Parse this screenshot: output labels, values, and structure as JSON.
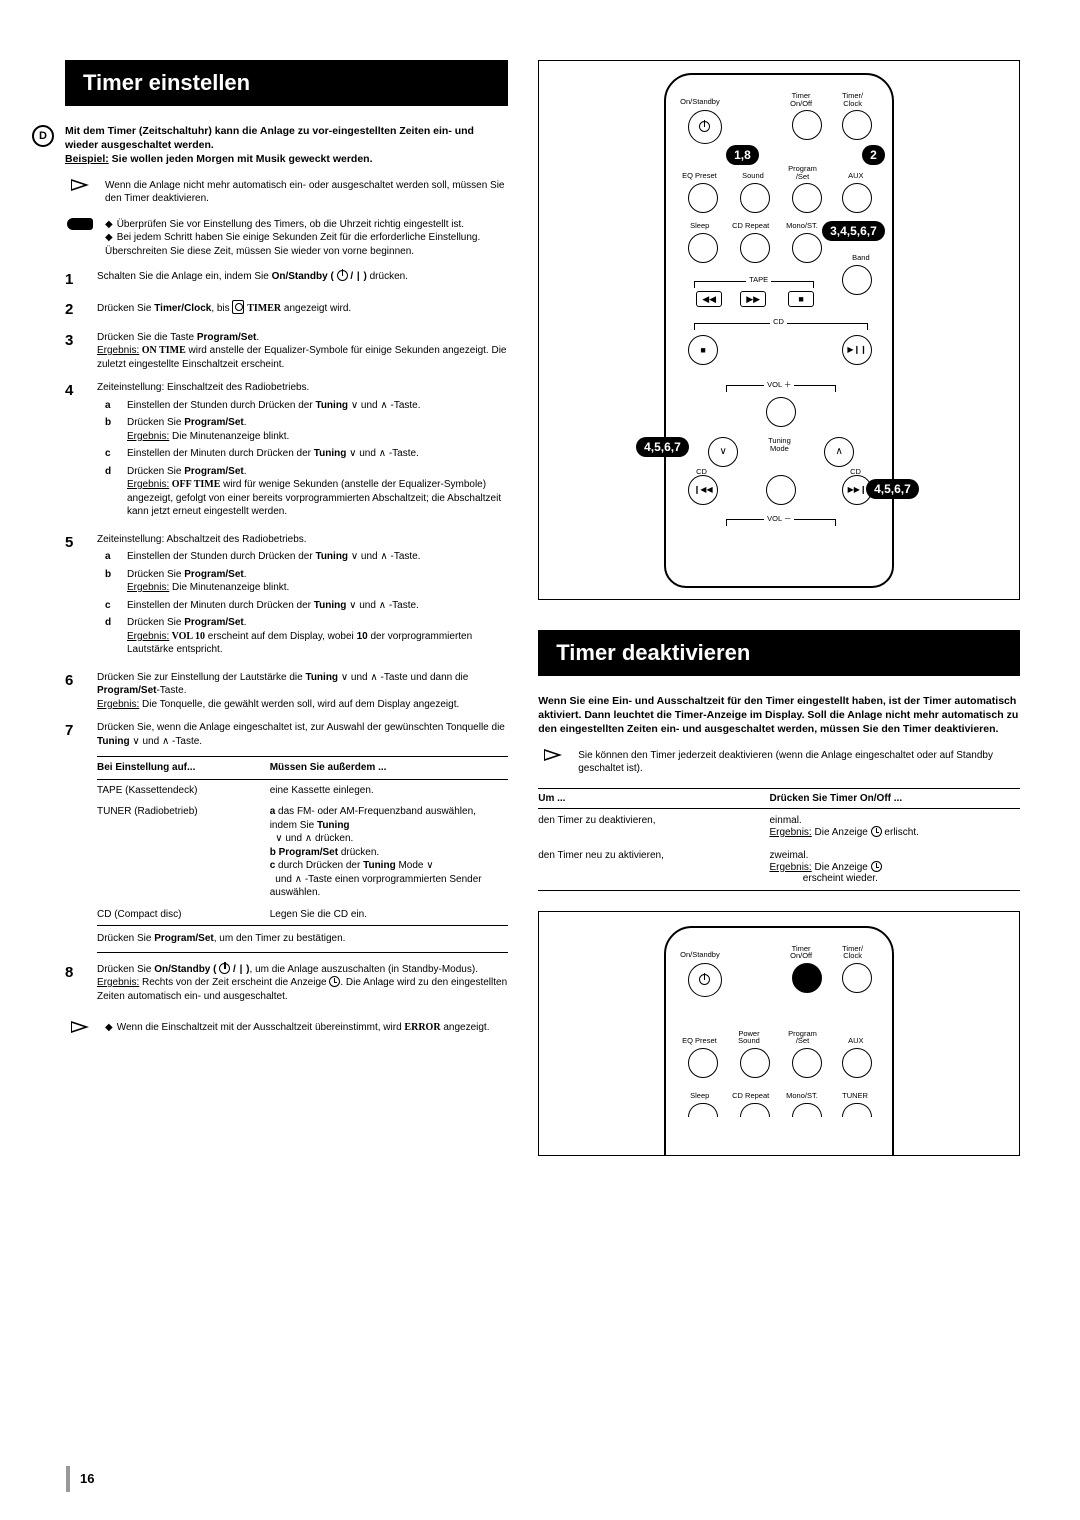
{
  "page": {
    "lang_badge": "D",
    "number": "16"
  },
  "title1": "Timer einstellen",
  "title2": "Timer deaktivieren",
  "intro": {
    "p1": "Mit dem Timer (Zeitschaltuhr) kann die Anlage zu vor-eingestellten Zeiten ein- und wieder ausgeschaltet werden.",
    "ex_label": "Beispiel:",
    "ex_text": " Sie wollen jeden Morgen mit Musik geweckt werden."
  },
  "note_arrow": "Wenn die Anlage nicht mehr automatisch ein- oder ausgeschaltet werden soll, müssen Sie den Timer deaktivieren.",
  "note_hand_1": "Überprüfen Sie vor Einstellung des Timers, ob die Uhrzeit richtig eingestellt ist.",
  "note_hand_2": "Bei jedem Schritt haben Sie einige Sekunden Zeit für die erforderliche Einstellung. Überschreiten Sie diese Zeit, müssen Sie wieder von vorne beginnen.",
  "steps": {
    "s1_a": "Schalten Sie die Anlage ein, indem Sie ",
    "s1_b": "On/Standby ( ",
    "s1_c": " ) ",
    "s1_d": "drücken.",
    "s2_a": "Drücken Sie ",
    "s2_b": "Timer/Clock",
    "s2_c": ", bis ",
    "s2_d": "TIMER",
    "s2_e": " angezeigt wird.",
    "s3_a": "Drücken Sie die Taste ",
    "s3_b": "Program/Set",
    "s3_c": ".",
    "s3_res_lbl": "Ergebnis:",
    "s3_res_a": " ON TIME",
    "s3_res_b": " wird anstelle der Equalizer-Symbole für einige Sekunden angezeigt. Die zuletzt eingestellte Einschaltzeit erscheint.",
    "s4": "Zeiteinstellung: Einschaltzeit des Radiobetriebs.",
    "s4a_a": "Einstellen der Stunden durch Drücken der ",
    "s4a_b": "Tuning",
    "s4a_c": " und ",
    "s4a_d": "-Taste.",
    "s4b_a": "Drücken Sie ",
    "s4b_b": "Program/Set",
    "s4b_c": ".",
    "s4b_res_lbl": "Ergebnis:",
    "s4b_res": " Die Minutenanzeige blinkt.",
    "s4c_a": "Einstellen der Minuten durch Drücken der ",
    "s4c_b": "Tuning",
    "s4c_c": " und ",
    "s4c_d": "-Taste.",
    "s4d_a": "Drücken Sie ",
    "s4d_b": "Program/Set",
    "s4d_c": ".",
    "s4d_res_lbl": "Ergebnis:",
    "s4d_res_a": " OFF TIME",
    "s4d_res_b": " wird für wenige Sekunden (anstelle der Equalizer-Symbole) angezeigt, gefolgt von einer bereits vorprogrammierten Abschaltzeit; die Abschaltzeit kann jetzt erneut eingestellt werden.",
    "s5": "Zeiteinstellung: Abschaltzeit des Radiobetriebs.",
    "s5a_a": "Einstellen der Stunden durch Drücken der ",
    "s5a_b": "Tuning",
    "s5a_c": " und ",
    "s5a_d": "-Taste.",
    "s5b_a": "Drücken Sie ",
    "s5b_b": "Program/Set",
    "s5b_c": ".",
    "s5b_res_lbl": "Ergebnis:",
    "s5b_res": " Die Minutenanzeige blinkt.",
    "s5c_a": "Einstellen der Minuten durch Drücken der ",
    "s5c_b": "Tuning",
    "s5c_c": " und ",
    "s5c_d": "-Taste.",
    "s5d_a": "Drücken Sie ",
    "s5d_b": "Program/Set",
    "s5d_c": ".",
    "s5d_res_lbl": "Ergebnis:",
    "s5d_res_a": " VOL 10",
    "s5d_res_b": " erscheint auf dem Display, wobei ",
    "s5d_res_c": "10",
    "s5d_res_d": " der vorprogrammierten Lautstärke entspricht.",
    "s6_a": "Drücken Sie zur Einstellung der Lautstärke die ",
    "s6_b": "Tuning",
    "s6_c": " und ",
    "s6_d": "-Taste und dann die ",
    "s6_e": "Program/Set",
    "s6_f": "-Taste.",
    "s6_res_lbl": "Ergebnis:",
    "s6_res": " Die Tonquelle, die gewählt werden soll, wird auf dem Display angezeigt.",
    "s7_a": "Drücken Sie, wenn die Anlage eingeschaltet ist, zur Auswahl der gewünschten Tonquelle die ",
    "s7_b": "Tuning",
    "s7_c": " und ",
    "s7_d": "-Taste.",
    "s7_tbl": {
      "h1": "Bei Einstellung auf...",
      "h2": "Müssen Sie außerdem ...",
      "r1c1": "TAPE (Kassettendeck)",
      "r1c2": "eine Kassette einlegen.",
      "r2c1": "TUNER (Radiobetrieb)",
      "r2c2a_lbl": "a",
      "r2c2a_a": " das FM- oder AM-Frequenzband auswählen, indem Sie ",
      "r2c2a_b": "Tuning",
      "r2c2a_c": " und ",
      "r2c2a_d": " drücken.",
      "r2c2b_lbl": "b",
      "r2c2b_a": " Program/Set",
      "r2c2b_b": " drücken.",
      "r2c2c_lbl": "c",
      "r2c2c_a": " durch Drücken der ",
      "r2c2c_b": "Tuning",
      "r2c2c_c": " Mode ",
      "r2c2c_d": "und ",
      "r2c2c_e": "-Taste einen vorprogrammierten Sender auswählen.",
      "r3c1": "CD (Compact disc)",
      "r3c2": "Legen Sie die CD ein.",
      "note_a": "Drücken Sie ",
      "note_b": "Program/Set",
      "note_c": ", um den Timer zu bestätigen."
    },
    "s8_a": "Drücken Sie ",
    "s8_b": "On/Standby ( ",
    "s8_c": " )",
    "s8_d": ", um die Anlage auszuschalten (in Standby-Modus).",
    "s8_res_lbl": "Ergebnis:",
    "s8_res_a": " Rechts von der Zeit erscheint die Anzeige ",
    "s8_res_b": ". Die Anlage wird zu den eingestellten Zeiten automatisch ein- und ausgeschaltet.",
    "final_note_a": "Wenn die Einschaltzeit mit der Ausschaltzeit übereinstimmt, wird ",
    "final_note_b": "ERROR",
    "final_note_c": " angezeigt."
  },
  "deact": {
    "intro": "Wenn Sie eine Ein- und Ausschaltzeit für den Timer eingestellt haben, ist der Timer automatisch aktiviert. Dann leuchtet die Timer-Anzeige im Display. Soll die Anlage nicht mehr automatisch zu den eingestellten Zeiten ein- und ausgeschaltet werden, müssen Sie den Timer deaktivieren.",
    "arrow_note": "Sie können den Timer jederzeit deaktivieren (wenn die Anlage eingeschaltet oder auf Standby geschaltet ist).",
    "tbl": {
      "h1": "Um ...",
      "h2": "Drücken Sie Timer On/Off ...",
      "r1c1": "den Timer zu deaktivieren,",
      "r1c2a": "einmal.",
      "r1c2b_lbl": "Ergebnis:",
      "r1c2b_a": " Die Anzeige ",
      "r1c2b_b": " erlischt.",
      "r2c1": "den Timer neu zu aktivieren,",
      "r2c2a": "zweimal.",
      "r2c2b_lbl": "Ergebnis:",
      "r2c2b_a": " Die Anzeige ",
      "r2c2b_b": " erscheint wieder."
    }
  },
  "remote": {
    "labels": {
      "onstandby": "On/Standby",
      "timer_onoff": "Timer\nOn/Off",
      "timer_clock": "Timer/\nClock",
      "eq": "EQ Preset",
      "sound": "Sound",
      "program": "Program\n/Set",
      "aux": "AUX",
      "sleep": "Sleep",
      "cdrepeat": "CD Repeat",
      "mono": "Mono/ST.",
      "band": "Band",
      "tape": "TAPE",
      "cd": "CD",
      "vol_p": "VOL ＋",
      "vol_m": "VOL －",
      "tuning": "Tuning\nMode",
      "cd_l": "CD",
      "cd_r": "CD",
      "power_sound": "Power\nSound",
      "tuner": "TUNER"
    },
    "callouts": {
      "c18": "1,8",
      "c2": "2",
      "c34567": "3,4,5,6,7",
      "c4567L": "4,5,6,7",
      "c4567R": "4,5,6,7"
    },
    "media": {
      "rw": "◀◀",
      "ff": "▶▶",
      "stop": "■",
      "stop2": "■",
      "play": "▶❙❙"
    }
  }
}
